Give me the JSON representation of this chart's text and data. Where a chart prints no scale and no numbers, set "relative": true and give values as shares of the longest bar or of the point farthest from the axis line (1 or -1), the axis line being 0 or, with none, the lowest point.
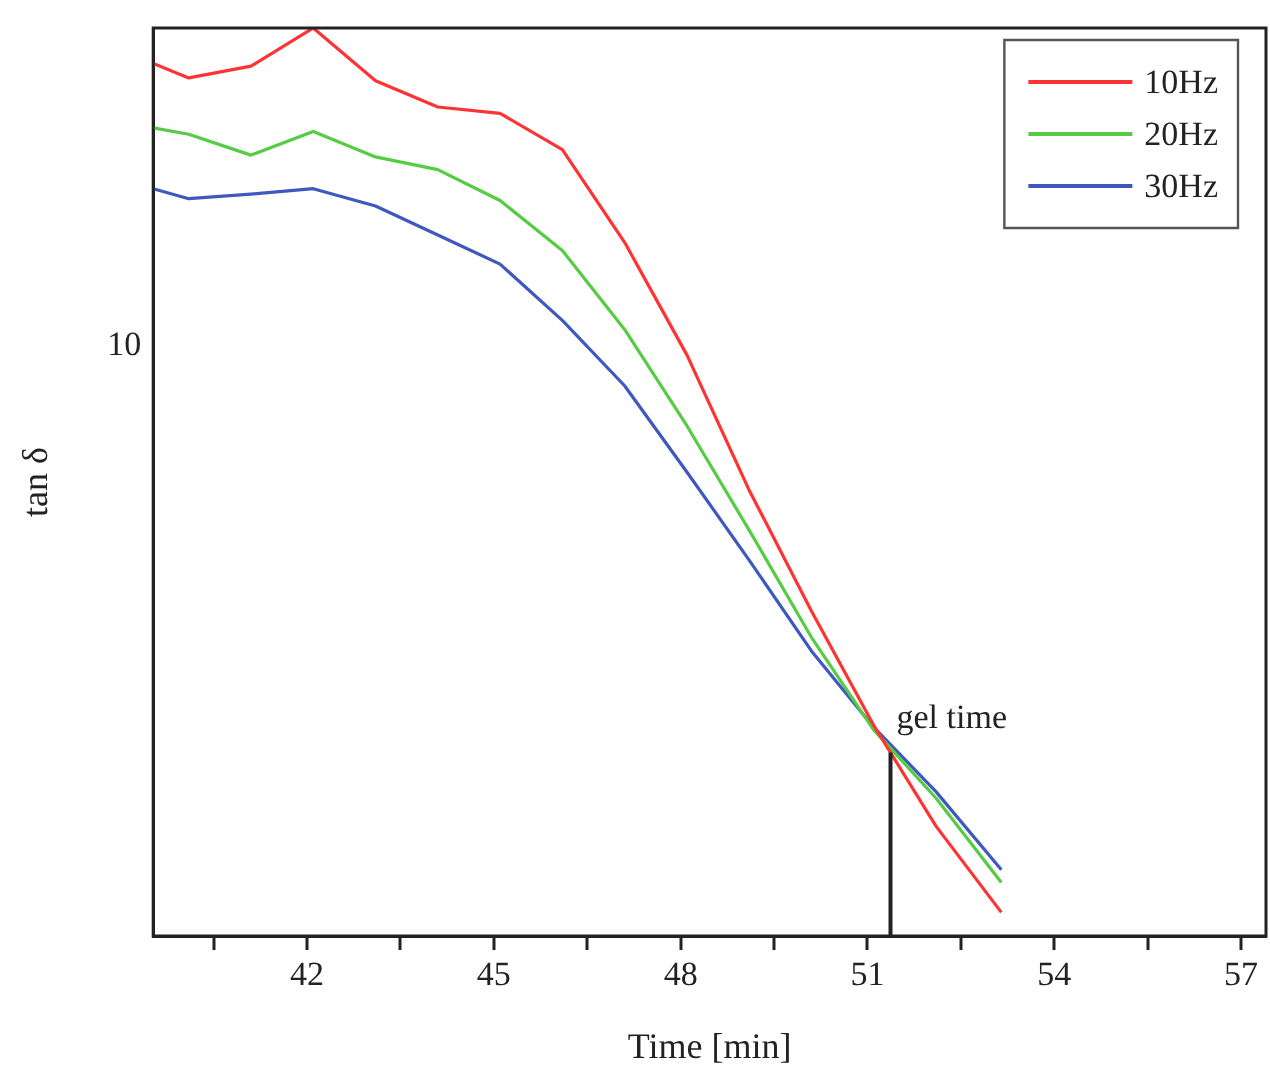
{
  "chart_data": {
    "type": "line",
    "xlabel": "Time [min]",
    "ylabel": "tan δ",
    "relative": true,
    "grid": false,
    "legend": "top right",
    "marker": "none",
    "line_style": "solid",
    "xlim": [
      39.53,
      57.4
    ],
    "xticks": [
      {
        "value": 40.5,
        "label": null
      },
      42,
      {
        "value": 43.5,
        "label": null
      },
      45,
      {
        "value": 46.5,
        "label": null
      },
      48,
      {
        "value": 49.5,
        "label": null
      },
      51,
      {
        "value": 52.5,
        "label": null
      },
      54,
      {
        "value": 55.5,
        "label": null
      },
      57
    ],
    "x": [
      39.53,
      40.1,
      41.1,
      42.1,
      43.1,
      44.1,
      45.1,
      46.1,
      47.1,
      48.1,
      49.1,
      50.1,
      51.1,
      52.1,
      53.15
    ],
    "series": [
      {
        "name": "10Hz",
        "color": "#ff3333",
        "values": [
          0.961,
          0.945,
          0.958,
          1,
          0.942,
          0.913,
          0.906,
          0.866,
          0.764,
          0.64,
          0.491,
          0.358,
          0.232,
          0.121,
          0.026
        ]
      },
      {
        "name": "20Hz",
        "color": "#55cc44",
        "values": [
          0.89,
          0.883,
          0.86,
          0.886,
          0.858,
          0.844,
          0.81,
          0.755,
          0.668,
          0.562,
          0.447,
          0.329,
          0.227,
          0.152,
          0.059
        ]
      },
      {
        "name": "30Hz",
        "color": "#3f58c0",
        "values": [
          0.823,
          0.812,
          0.817,
          0.823,
          0.804,
          0.772,
          0.74,
          0.678,
          0.606,
          0.511,
          0.414,
          0.314,
          0.23,
          0.159,
          0.073
        ]
      }
    ],
    "ref_lines": [
      {
        "axis": "x",
        "value": 51.37,
        "label": "gel time",
        "color": "#222222"
      }
    ],
    "annotations": [
      "10"
    ]
  }
}
